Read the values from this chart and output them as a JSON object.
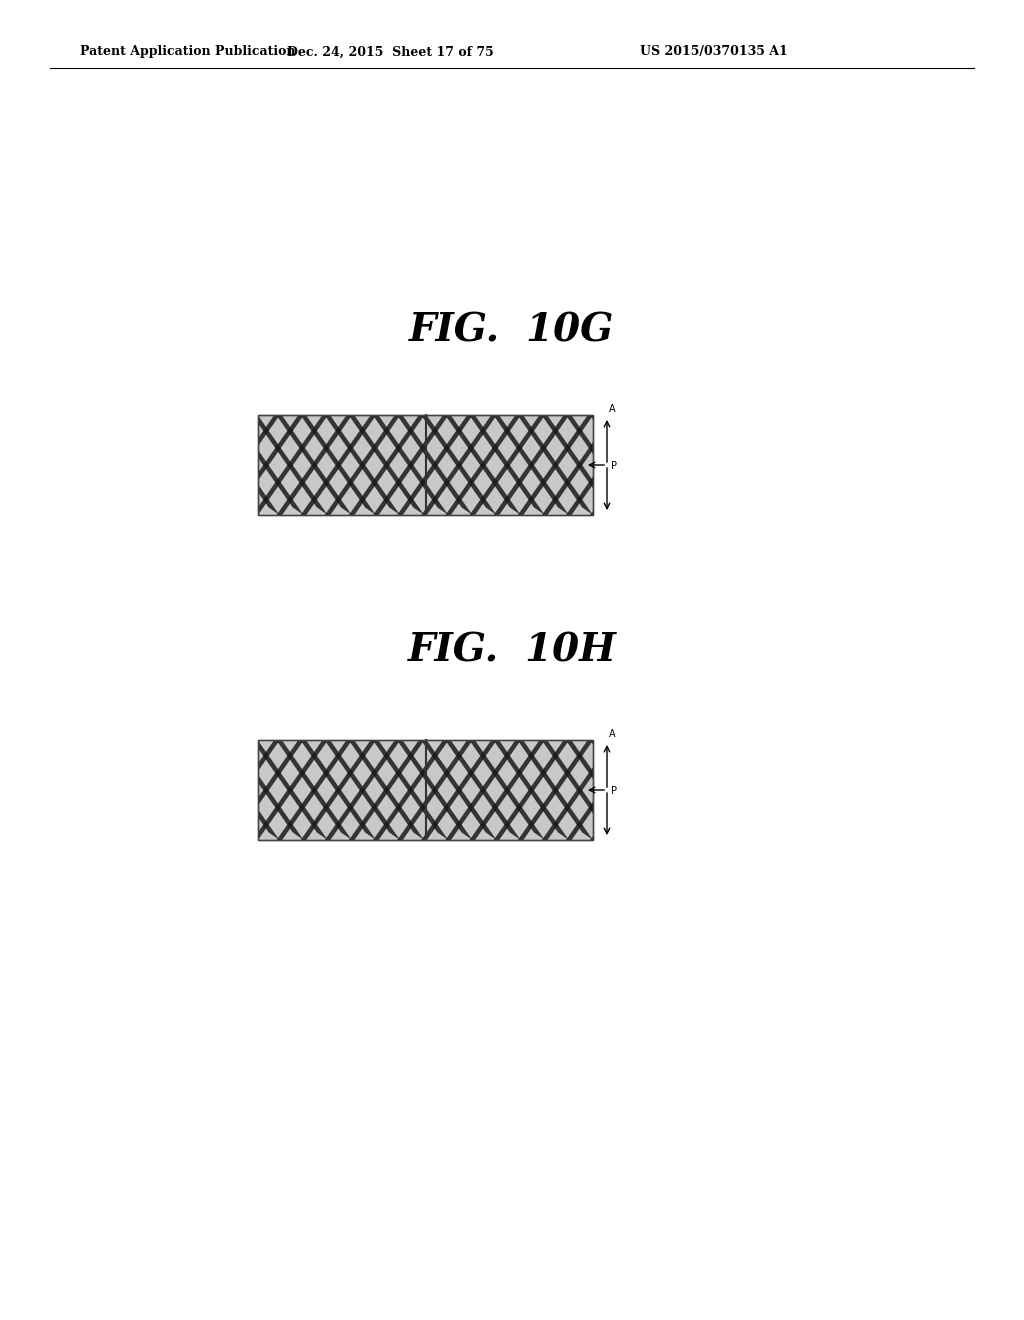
{
  "title_top": "Patent Application Publication",
  "title_date": "Dec. 24, 2015  Sheet 17 of 75",
  "title_patent": "US 2015/0370135 A1",
  "fig1_label": "FIG.  10G",
  "fig2_label": "FIG.  10H",
  "bg_color": "#ffffff",
  "text_color": "#000000",
  "header_fontsize": 9,
  "fig_label_fontsize": 28,
  "pattern_bg": "#c8c8c8",
  "stripe_dark": "#1a1a1a",
  "stripe_light": "#e0e0e0"
}
